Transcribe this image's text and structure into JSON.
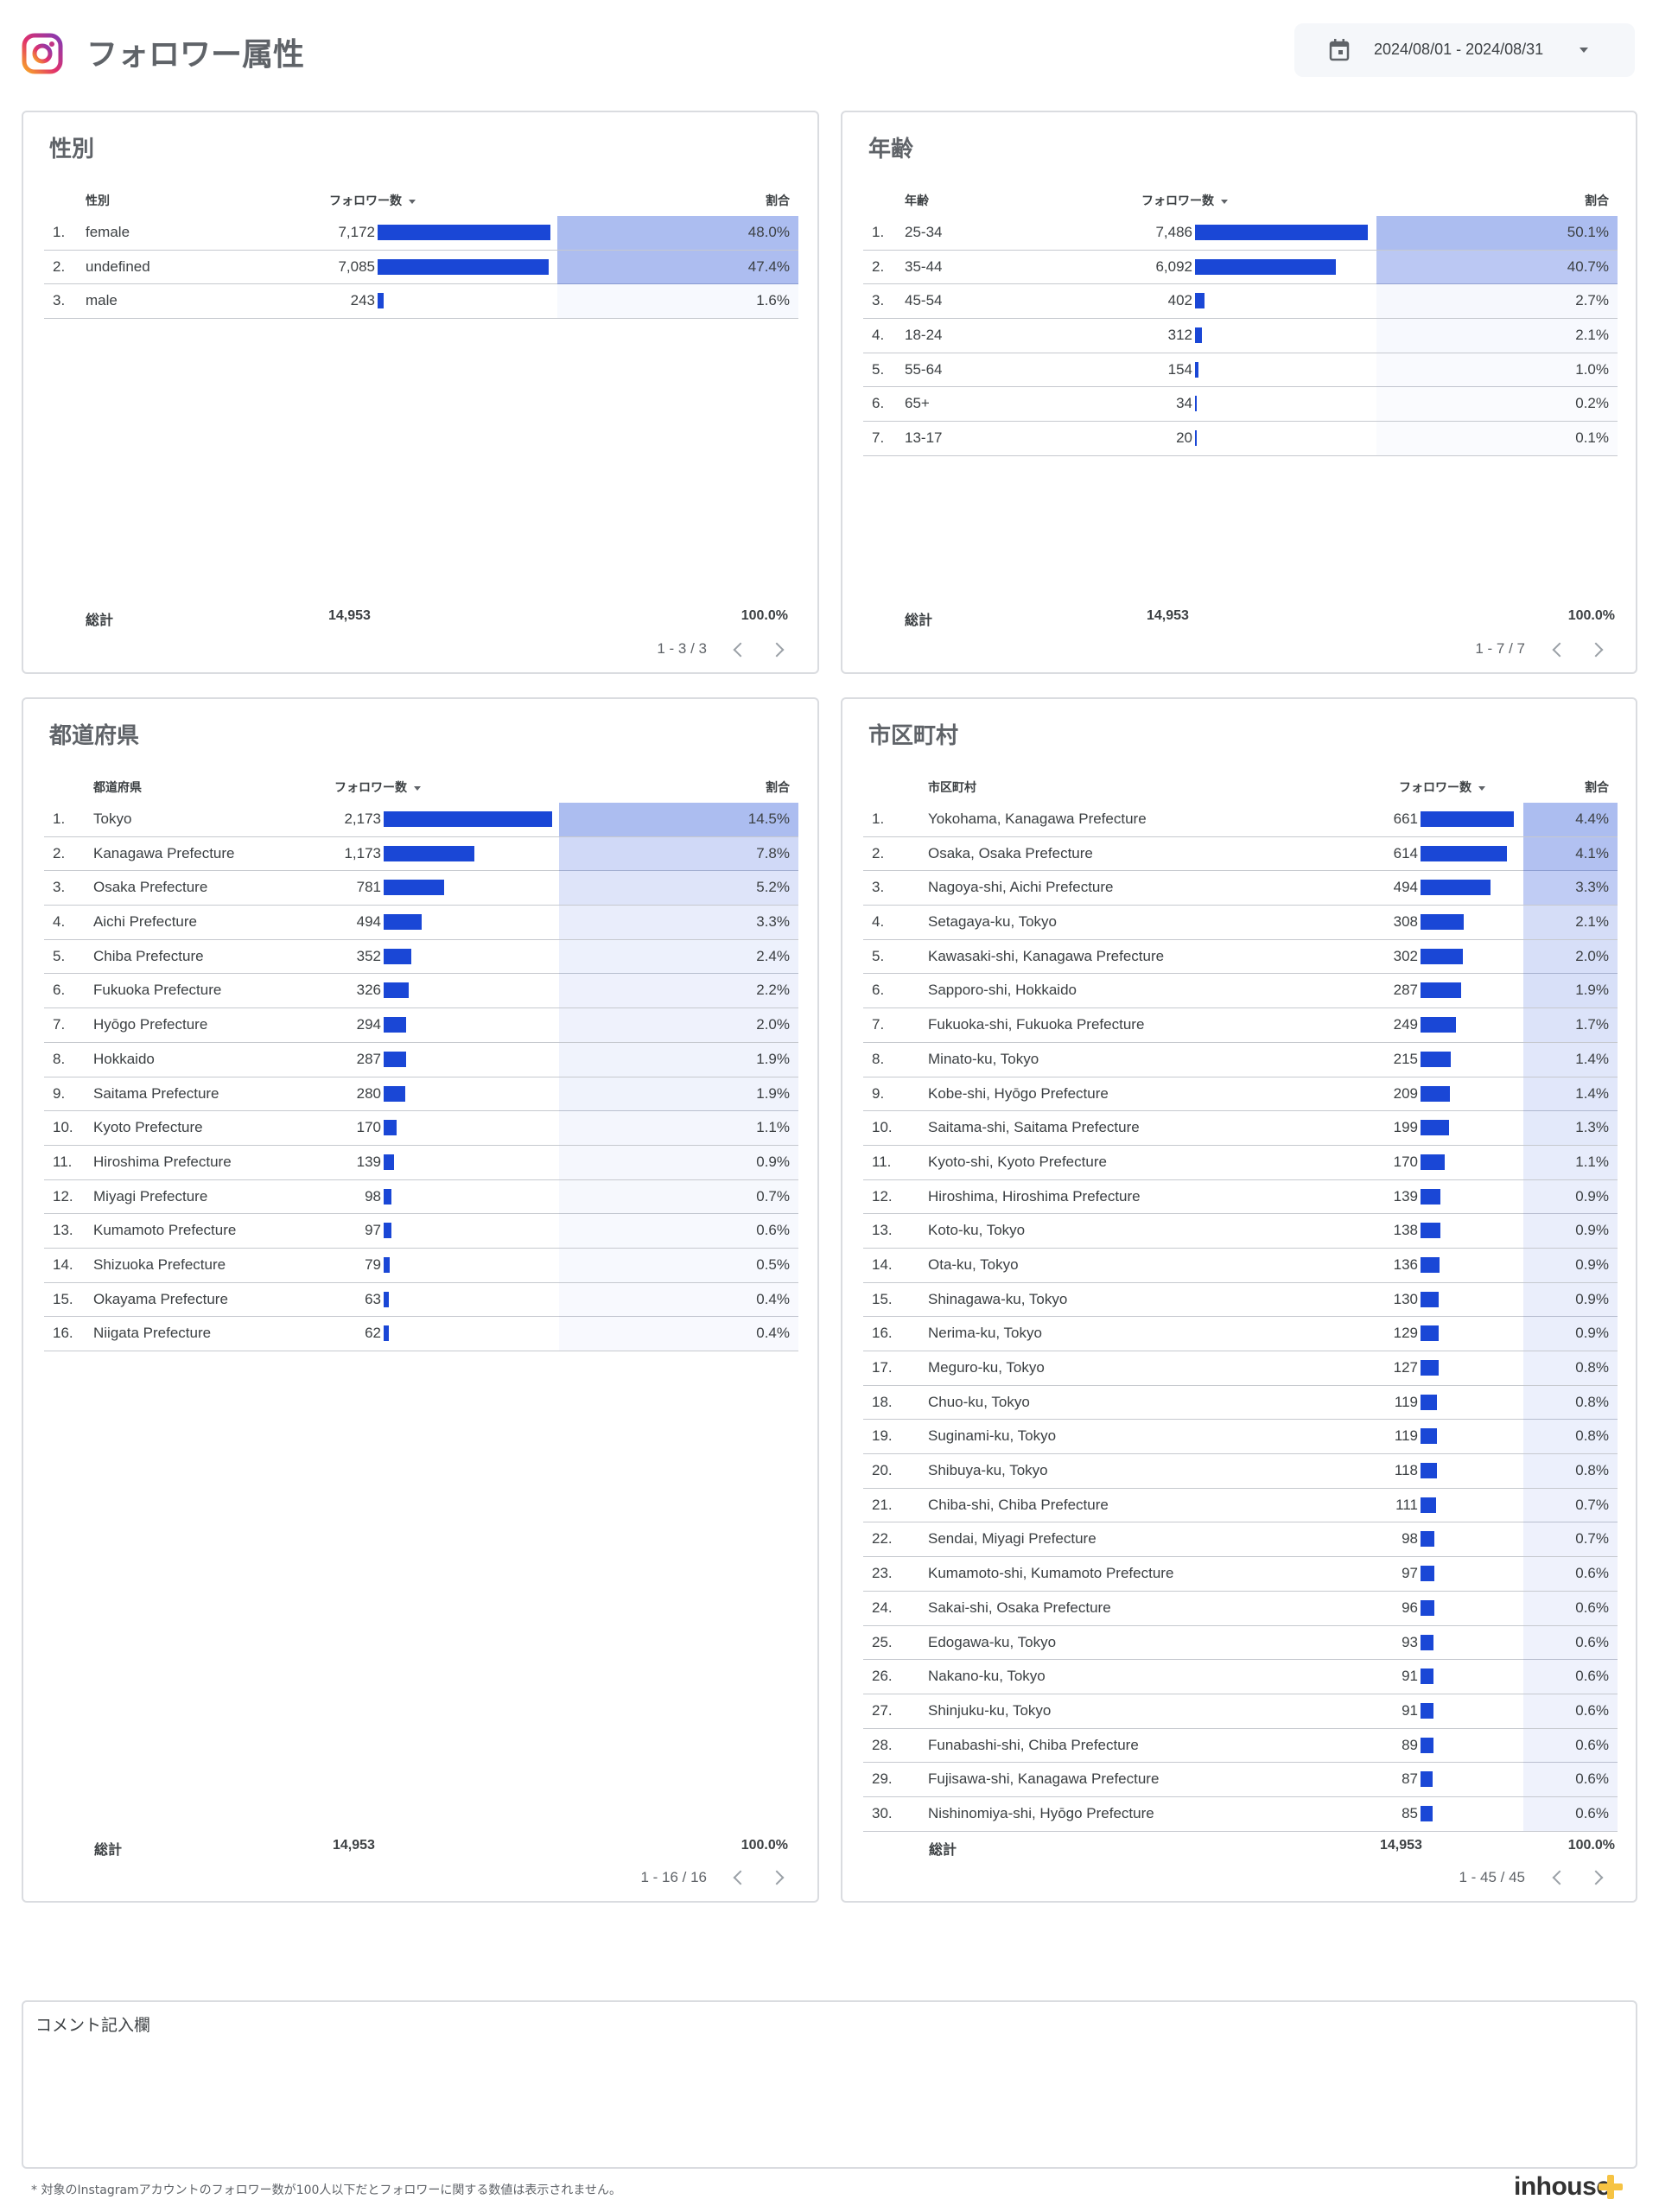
{
  "header": {
    "title": "フォロワー属性",
    "date_range": "2024/08/01 - 2024/08/31"
  },
  "common": {
    "followers_col": "フォロワー数",
    "ratio_col": "割合",
    "total_label": "総計"
  },
  "gender": {
    "title": "性別",
    "dim_col": "性別",
    "rows": [
      {
        "idx": "1.",
        "name": "female",
        "count": "7,172",
        "value": 7172,
        "pct": "48.0%"
      },
      {
        "idx": "2.",
        "name": "undefined",
        "count": "7,085",
        "value": 7085,
        "pct": "47.4%"
      },
      {
        "idx": "3.",
        "name": "male",
        "count": "243",
        "value": 243,
        "pct": "1.6%"
      }
    ],
    "total": "14,953",
    "total_pct": "100.0%",
    "pager": "1 - 3 / 3"
  },
  "age": {
    "title": "年齢",
    "dim_col": "年齢",
    "rows": [
      {
        "idx": "1.",
        "name": "25-34",
        "count": "7,486",
        "value": 7486,
        "pct": "50.1%"
      },
      {
        "idx": "2.",
        "name": "35-44",
        "count": "6,092",
        "value": 6092,
        "pct": "40.7%"
      },
      {
        "idx": "3.",
        "name": "45-54",
        "count": "402",
        "value": 402,
        "pct": "2.7%"
      },
      {
        "idx": "4.",
        "name": "18-24",
        "count": "312",
        "value": 312,
        "pct": "2.1%"
      },
      {
        "idx": "5.",
        "name": "55-64",
        "count": "154",
        "value": 154,
        "pct": "1.0%"
      },
      {
        "idx": "6.",
        "name": "65+",
        "count": "34",
        "value": 34,
        "pct": "0.2%"
      },
      {
        "idx": "7.",
        "name": "13-17",
        "count": "20",
        "value": 20,
        "pct": "0.1%"
      }
    ],
    "total": "14,953",
    "total_pct": "100.0%",
    "pager": "1 - 7 / 7"
  },
  "prefecture": {
    "title": "都道府県",
    "dim_col": "都道府県",
    "rows": [
      {
        "idx": "1.",
        "name": "Tokyo",
        "count": "2,173",
        "value": 2173,
        "pct": "14.5%"
      },
      {
        "idx": "2.",
        "name": "Kanagawa Prefecture",
        "count": "1,173",
        "value": 1173,
        "pct": "7.8%"
      },
      {
        "idx": "3.",
        "name": "Osaka Prefecture",
        "count": "781",
        "value": 781,
        "pct": "5.2%"
      },
      {
        "idx": "4.",
        "name": "Aichi Prefecture",
        "count": "494",
        "value": 494,
        "pct": "3.3%"
      },
      {
        "idx": "5.",
        "name": "Chiba Prefecture",
        "count": "352",
        "value": 352,
        "pct": "2.4%"
      },
      {
        "idx": "6.",
        "name": "Fukuoka Prefecture",
        "count": "326",
        "value": 326,
        "pct": "2.2%"
      },
      {
        "idx": "7.",
        "name": "Hyōgo Prefecture",
        "count": "294",
        "value": 294,
        "pct": "2.0%"
      },
      {
        "idx": "8.",
        "name": "Hokkaido",
        "count": "287",
        "value": 287,
        "pct": "1.9%"
      },
      {
        "idx": "9.",
        "name": "Saitama Prefecture",
        "count": "280",
        "value": 280,
        "pct": "1.9%"
      },
      {
        "idx": "10.",
        "name": "Kyoto Prefecture",
        "count": "170",
        "value": 170,
        "pct": "1.1%"
      },
      {
        "idx": "11.",
        "name": "Hiroshima Prefecture",
        "count": "139",
        "value": 139,
        "pct": "0.9%"
      },
      {
        "idx": "12.",
        "name": "Miyagi Prefecture",
        "count": "98",
        "value": 98,
        "pct": "0.7%"
      },
      {
        "idx": "13.",
        "name": "Kumamoto Prefecture",
        "count": "97",
        "value": 97,
        "pct": "0.6%"
      },
      {
        "idx": "14.",
        "name": "Shizuoka Prefecture",
        "count": "79",
        "value": 79,
        "pct": "0.5%"
      },
      {
        "idx": "15.",
        "name": "Okayama Prefecture",
        "count": "63",
        "value": 63,
        "pct": "0.4%"
      },
      {
        "idx": "16.",
        "name": "Niigata Prefecture",
        "count": "62",
        "value": 62,
        "pct": "0.4%"
      }
    ],
    "total": "14,953",
    "total_pct": "100.0%",
    "pager": "1 - 16 / 16"
  },
  "city": {
    "title": "市区町村",
    "dim_col": "市区町村",
    "rows": [
      {
        "idx": "1.",
        "name": "Yokohama, Kanagawa Prefecture",
        "count": "661",
        "value": 661,
        "pct": "4.4%"
      },
      {
        "idx": "2.",
        "name": "Osaka, Osaka Prefecture",
        "count": "614",
        "value": 614,
        "pct": "4.1%"
      },
      {
        "idx": "3.",
        "name": "Nagoya-shi, Aichi Prefecture",
        "count": "494",
        "value": 494,
        "pct": "3.3%"
      },
      {
        "idx": "4.",
        "name": "Setagaya-ku, Tokyo",
        "count": "308",
        "value": 308,
        "pct": "2.1%"
      },
      {
        "idx": "5.",
        "name": "Kawasaki-shi, Kanagawa Prefecture",
        "count": "302",
        "value": 302,
        "pct": "2.0%"
      },
      {
        "idx": "6.",
        "name": "Sapporo-shi, Hokkaido",
        "count": "287",
        "value": 287,
        "pct": "1.9%"
      },
      {
        "idx": "7.",
        "name": "Fukuoka-shi, Fukuoka Prefecture",
        "count": "249",
        "value": 249,
        "pct": "1.7%"
      },
      {
        "idx": "8.",
        "name": "Minato-ku, Tokyo",
        "count": "215",
        "value": 215,
        "pct": "1.4%"
      },
      {
        "idx": "9.",
        "name": "Kobe-shi, Hyōgo Prefecture",
        "count": "209",
        "value": 209,
        "pct": "1.4%"
      },
      {
        "idx": "10.",
        "name": "Saitama-shi, Saitama Prefecture",
        "count": "199",
        "value": 199,
        "pct": "1.3%"
      },
      {
        "idx": "11.",
        "name": "Kyoto-shi, Kyoto Prefecture",
        "count": "170",
        "value": 170,
        "pct": "1.1%"
      },
      {
        "idx": "12.",
        "name": "Hiroshima, Hiroshima Prefecture",
        "count": "139",
        "value": 139,
        "pct": "0.9%"
      },
      {
        "idx": "13.",
        "name": "Koto-ku, Tokyo",
        "count": "138",
        "value": 138,
        "pct": "0.9%"
      },
      {
        "idx": "14.",
        "name": "Ota-ku, Tokyo",
        "count": "136",
        "value": 136,
        "pct": "0.9%"
      },
      {
        "idx": "15.",
        "name": "Shinagawa-ku, Tokyo",
        "count": "130",
        "value": 130,
        "pct": "0.9%"
      },
      {
        "idx": "16.",
        "name": "Nerima-ku, Tokyo",
        "count": "129",
        "value": 129,
        "pct": "0.9%"
      },
      {
        "idx": "17.",
        "name": "Meguro-ku, Tokyo",
        "count": "127",
        "value": 127,
        "pct": "0.8%"
      },
      {
        "idx": "18.",
        "name": "Chuo-ku, Tokyo",
        "count": "119",
        "value": 119,
        "pct": "0.8%"
      },
      {
        "idx": "19.",
        "name": "Suginami-ku, Tokyo",
        "count": "119",
        "value": 119,
        "pct": "0.8%"
      },
      {
        "idx": "20.",
        "name": "Shibuya-ku, Tokyo",
        "count": "118",
        "value": 118,
        "pct": "0.8%"
      },
      {
        "idx": "21.",
        "name": "Chiba-shi, Chiba Prefecture",
        "count": "111",
        "value": 111,
        "pct": "0.7%"
      },
      {
        "idx": "22.",
        "name": "Sendai, Miyagi Prefecture",
        "count": "98",
        "value": 98,
        "pct": "0.7%"
      },
      {
        "idx": "23.",
        "name": "Kumamoto-shi, Kumamoto Prefecture",
        "count": "97",
        "value": 97,
        "pct": "0.6%"
      },
      {
        "idx": "24.",
        "name": "Sakai-shi, Osaka Prefecture",
        "count": "96",
        "value": 96,
        "pct": "0.6%"
      },
      {
        "idx": "25.",
        "name": "Edogawa-ku, Tokyo",
        "count": "93",
        "value": 93,
        "pct": "0.6%"
      },
      {
        "idx": "26.",
        "name": "Nakano-ku, Tokyo",
        "count": "91",
        "value": 91,
        "pct": "0.6%"
      },
      {
        "idx": "27.",
        "name": "Shinjuku-ku, Tokyo",
        "count": "91",
        "value": 91,
        "pct": "0.6%"
      },
      {
        "idx": "28.",
        "name": "Funabashi-shi, Chiba Prefecture",
        "count": "89",
        "value": 89,
        "pct": "0.6%"
      },
      {
        "idx": "29.",
        "name": "Fujisawa-shi, Kanagawa Prefecture",
        "count": "87",
        "value": 87,
        "pct": "0.6%"
      },
      {
        "idx": "30.",
        "name": "Nishinomiya-shi, Hyōgo Prefecture",
        "count": "85",
        "value": 85,
        "pct": "0.6%"
      }
    ],
    "total": "14,953",
    "total_pct": "100.0%",
    "pager": "1 - 45 / 45"
  },
  "comment": {
    "label": "コメント記入欄"
  },
  "footer": {
    "note": "* 対象のInstagramアカウントのフォロワー数が100人以下だとフォロワーに関する数値は表示されません。",
    "brand": "inhouse"
  },
  "colors": {
    "bar": "#1a47d6",
    "heat": "#aebbe8",
    "border": "#dadce0",
    "brand_plus": "#f6c343"
  },
  "icons": [
    "instagram-logo-icon",
    "calendar-icon",
    "dropdown-caret-icon",
    "sort-desc-icon",
    "chevron-left-icon",
    "chevron-right-icon",
    "plus-icon"
  ]
}
